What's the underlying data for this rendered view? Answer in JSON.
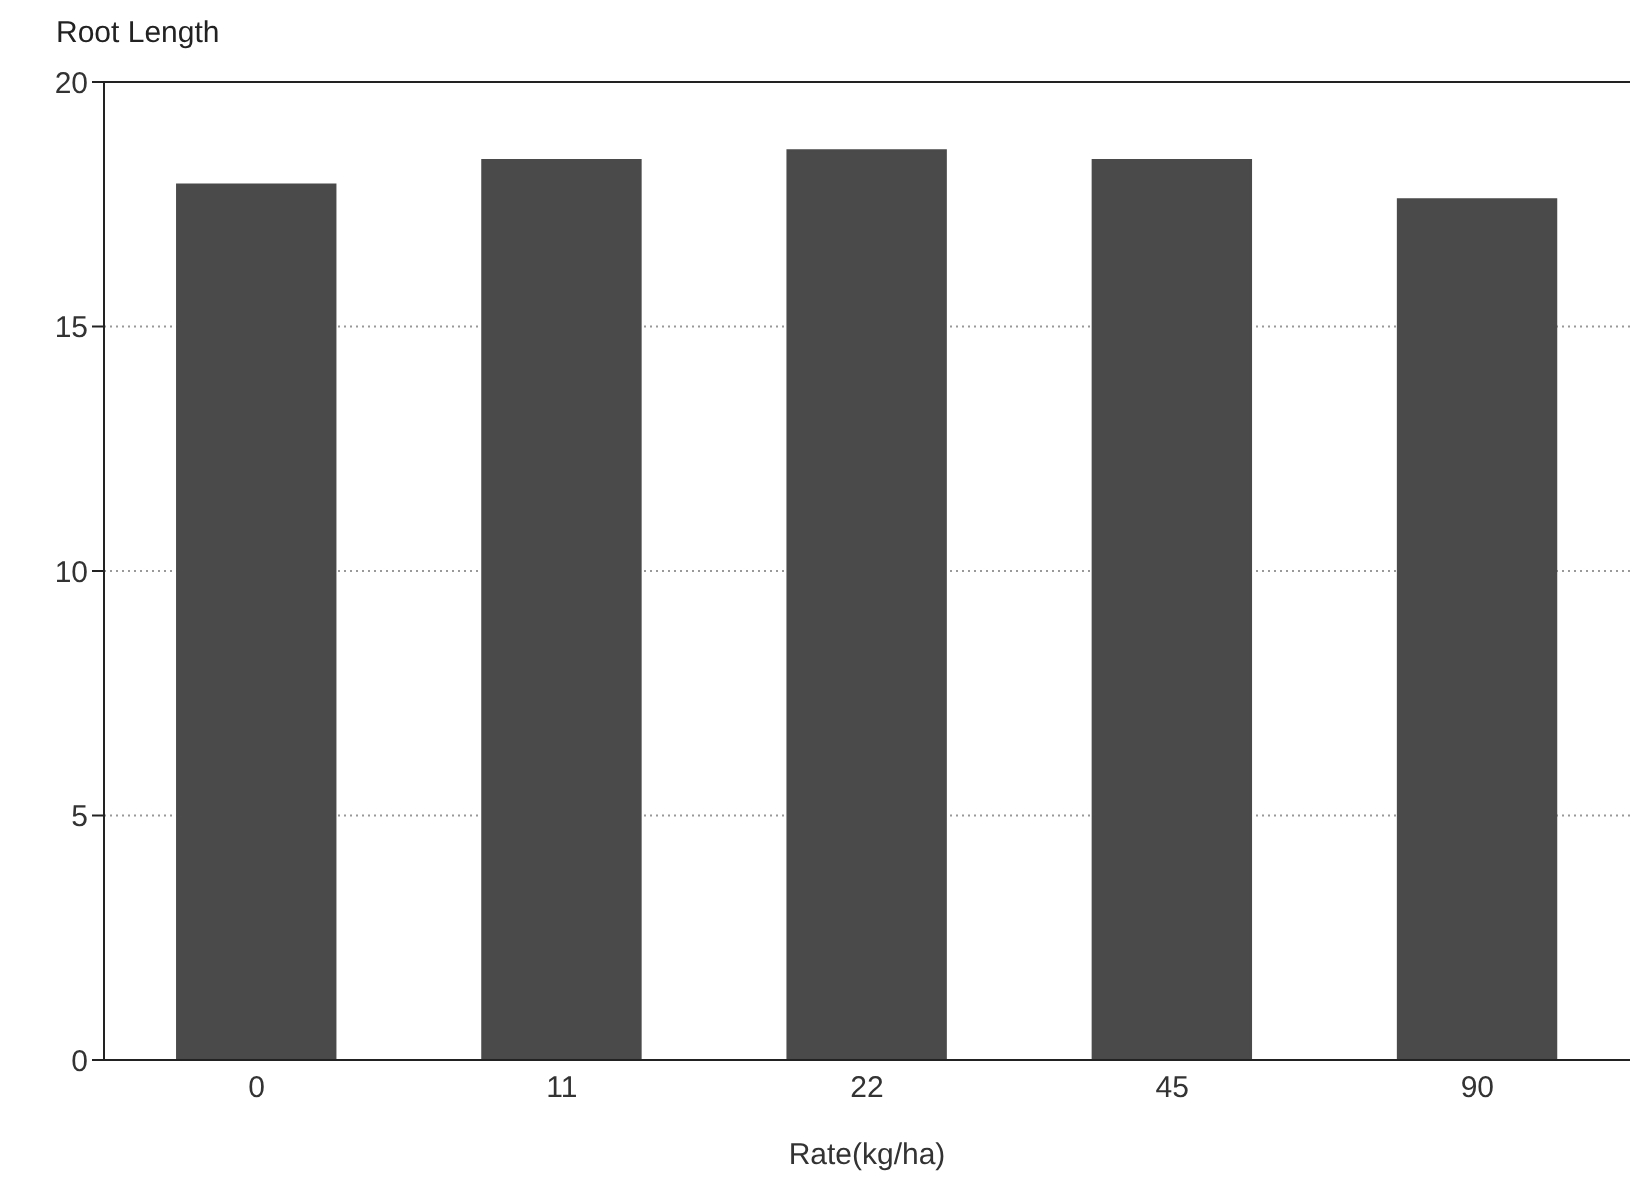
{
  "chart_data": {
    "type": "bar",
    "ylabel": "Root Length",
    "xlabel": "Rate(kg/ha)",
    "categories": [
      "0",
      "11",
      "22",
      "45",
      "90"
    ],
    "values": [
      17.9,
      18.4,
      18.6,
      18.4,
      17.6
    ],
    "color": "#4a4a4a",
    "ylim": [
      0,
      20
    ],
    "yticks": [
      0,
      5,
      10,
      15,
      20
    ],
    "grid": "y"
  }
}
